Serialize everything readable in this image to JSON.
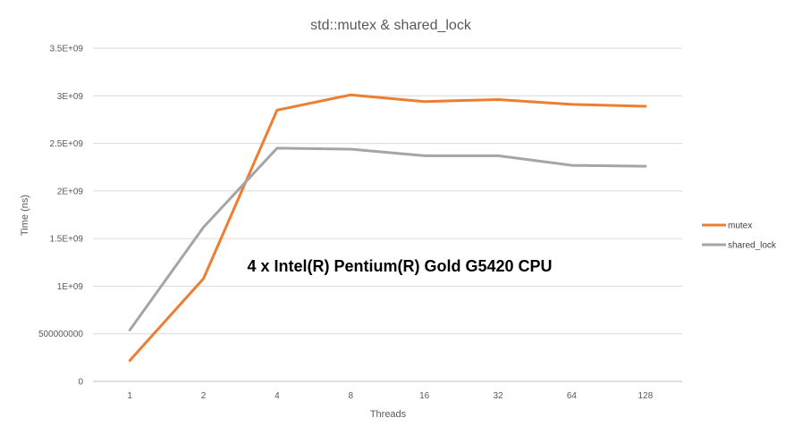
{
  "chart_data": {
    "type": "line",
    "title": "std::mutex & shared_lock",
    "xlabel": "Threads",
    "ylabel": "Time (ns)",
    "categories": [
      "1",
      "2",
      "4",
      "8",
      "16",
      "32",
      "64",
      "128"
    ],
    "ylim": [
      0,
      3500000000
    ],
    "y_ticks": [
      0,
      500000000,
      1000000000,
      1500000000,
      2000000000,
      2500000000,
      3000000000,
      3500000000
    ],
    "y_tick_labels": [
      "0",
      "500000000",
      "1E+09",
      "1.5E+09",
      "2E+09",
      "2.5E+09",
      "3E+09",
      "3.5E+09"
    ],
    "grid": true,
    "legend_position": "right",
    "annotation": "4 x Intel(R) Pentium(R) Gold G5420 CPU",
    "series": [
      {
        "name": "mutex",
        "color": "#ED7D31",
        "values": [
          220000000,
          1080000000,
          2850000000,
          3010000000,
          2940000000,
          2960000000,
          2910000000,
          2890000000
        ]
      },
      {
        "name": "shared_lock",
        "color": "#A5A5A5",
        "values": [
          540000000,
          1620000000,
          2450000000,
          2440000000,
          2370000000,
          2370000000,
          2270000000,
          2260000000
        ]
      }
    ]
  }
}
